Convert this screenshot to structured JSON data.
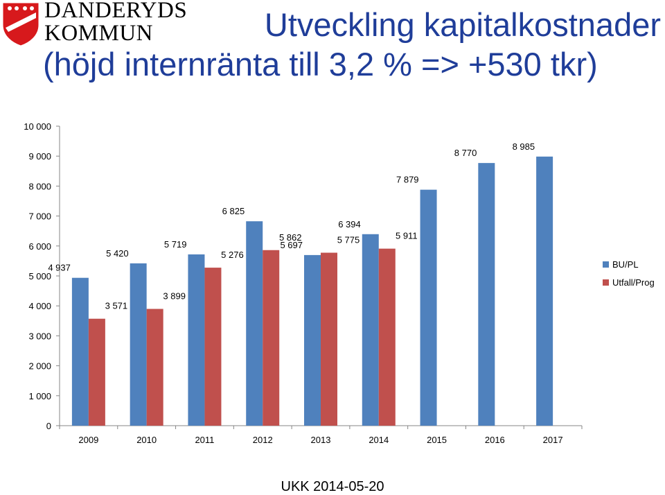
{
  "logo": {
    "line1": "DANDERYDS",
    "line2": "KOMMUN"
  },
  "title": {
    "line1": "Utveckling kapitalkostnader",
    "line2": "(höjd internränta till 3,2 % => +530 tkr)"
  },
  "footer": "UKK 2014-05-20",
  "colors": {
    "title": "#1f3d99",
    "bu_pl": "#4f81bd",
    "utfall": "#c0504d",
    "logo": "#d7191c"
  },
  "chart_data": {
    "type": "bar",
    "categories": [
      "2009",
      "2010",
      "2011",
      "2012",
      "2013",
      "2014",
      "2015",
      "2016",
      "2017"
    ],
    "series": [
      {
        "name": "BU/PL",
        "values": [
          4937,
          5420,
          5719,
          6825,
          5697,
          6394,
          7879,
          8770,
          8985
        ],
        "labels": [
          "4 937",
          "5 420",
          "5 719",
          "6 825",
          "5 697",
          "6 394",
          "7 879",
          "8 770",
          "8 985"
        ]
      },
      {
        "name": "Utfall/Prog",
        "values": [
          3571,
          3899,
          5276,
          5862,
          5775,
          5911,
          null,
          null,
          null
        ],
        "labels": [
          "3 571",
          "3 899",
          "5 276",
          "5 862",
          "5 775",
          "5 911",
          "",
          "",
          ""
        ]
      }
    ],
    "yticks": [
      "0",
      "1 000",
      "2 000",
      "3 000",
      "4 000",
      "5 000",
      "6 000",
      "7 000",
      "8 000",
      "9 000",
      "10 000"
    ],
    "ylim": [
      0,
      10000
    ],
    "grid": false,
    "legend": "right"
  }
}
